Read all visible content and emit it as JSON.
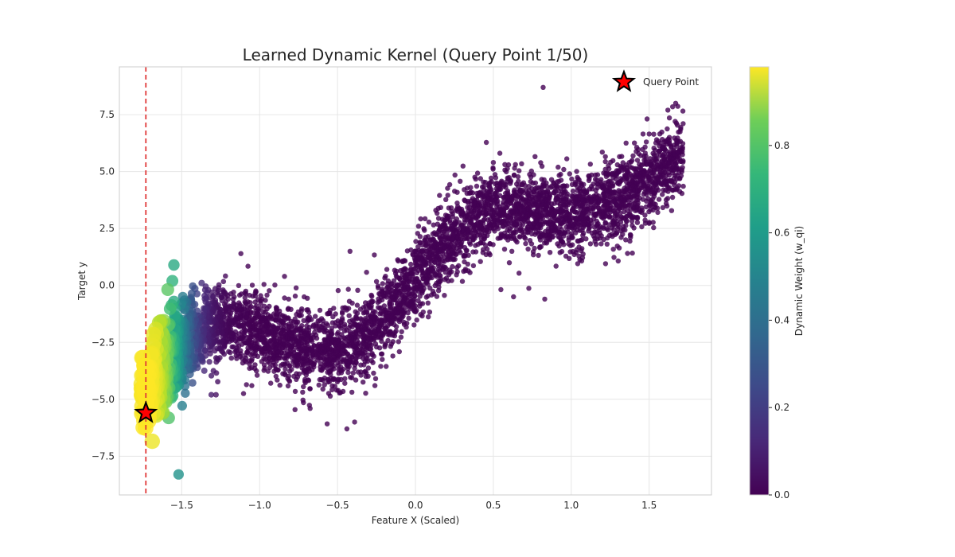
{
  "chart_data": {
    "type": "scatter",
    "title": "Learned Dynamic Kernel (Query Point 1/50)",
    "xlabel": "Feature X (Scaled)",
    "ylabel": "Target y",
    "xlim": [
      -1.9,
      1.9
    ],
    "ylim": [
      -9.2,
      9.6
    ],
    "x_ticks": [
      -1.5,
      -1.0,
      -0.5,
      0.0,
      0.5,
      1.0,
      1.5
    ],
    "x_tick_labels": [
      "−1.5",
      "−1.0",
      "−0.5",
      "0.0",
      "0.5",
      "1.0",
      "1.5"
    ],
    "y_ticks": [
      -7.5,
      -5.0,
      -2.5,
      0.0,
      2.5,
      5.0,
      7.5
    ],
    "y_tick_labels": [
      "−7.5",
      "−5.0",
      "−2.5",
      "0.0",
      "2.5",
      "5.0",
      "7.5"
    ],
    "grid": true,
    "query_point": {
      "x": -1.73,
      "y": -5.6,
      "label": "Query Point",
      "color": "#ff0000"
    },
    "query_line_x": -1.73,
    "query_line_color": "#e03a3a",
    "legend_position": "top-right",
    "colorbar": {
      "label": "Dynamic Weight (w_qi)",
      "range": [
        0.0,
        0.98
      ],
      "ticks": [
        0.0,
        0.2,
        0.4,
        0.6,
        0.8
      ],
      "tick_labels": [
        "0.0",
        "0.2",
        "0.4",
        "0.6",
        "0.8"
      ],
      "colormap": "viridis"
    },
    "data_trend": {
      "x": [
        -1.75,
        -1.5,
        -1.25,
        -1.0,
        -0.75,
        -0.5,
        -0.25,
        0.0,
        0.25,
        0.5,
        0.75,
        1.0,
        1.25,
        1.5,
        1.72
      ],
      "y": [
        -4.8,
        -2.6,
        -1.6,
        -2.0,
        -2.8,
        -2.8,
        -1.8,
        0.2,
        2.3,
        3.4,
        3.3,
        3.0,
        3.6,
        4.6,
        5.9
      ]
    },
    "data_spread_std": 0.85,
    "n_points": 5000,
    "kernel_width": 0.18,
    "series": [
      {
        "color_by": "weight",
        "x": [
          -1.55,
          -1.56,
          -1.55,
          -1.52,
          -1.35,
          -1.33,
          -1.3,
          -1.28,
          -1.12,
          -1.05,
          -0.84,
          -0.42,
          -0.39,
          -0.26,
          0.02,
          0.5,
          0.63,
          0.82,
          0.83,
          0.99,
          1.62,
          1.67,
          -0.44,
          -1.31
        ],
        "y": [
          0.9,
          0.2,
          -0.7,
          -8.3,
          -0.2,
          -0.2,
          -0.7,
          -4.8,
          1.4,
          -4.4,
          0.4,
          1.5,
          -6.0,
          -4.4,
          2.6,
          5.4,
          -0.5,
          8.7,
          -0.6,
          4.9,
          7.7,
          8.0,
          -6.3,
          -4.8
        ]
      }
    ]
  }
}
